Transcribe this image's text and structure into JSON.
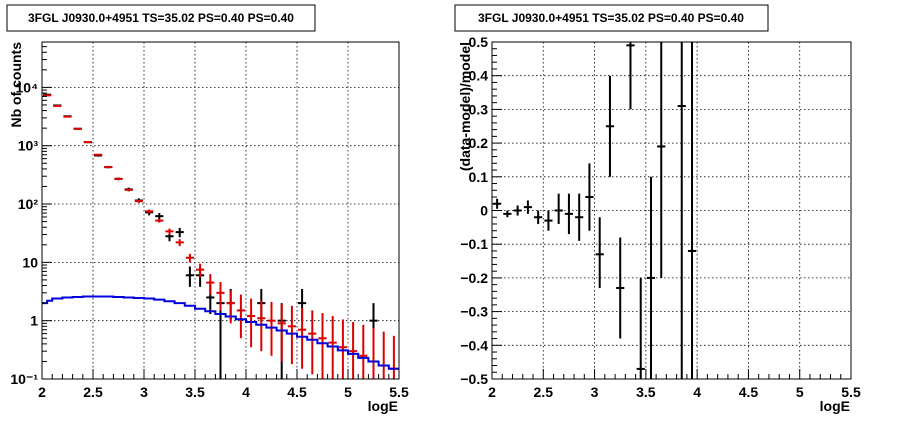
{
  "chart_data": [
    {
      "type": "histogram",
      "title": "3FGL J0930.0+4951 TS=35.02 PS=0.40 PS=0.40",
      "xlabel": "logE",
      "ylabel": "Nb of counts",
      "xlim": [
        2,
        5.5
      ],
      "ylim": [
        0.1,
        60000
      ],
      "yscale": "log",
      "grid": true,
      "x_ticks": [
        {
          "v": 2,
          "label": "2"
        },
        {
          "v": 2.5,
          "label": "2.5"
        },
        {
          "v": 3,
          "label": "3"
        },
        {
          "v": 3.5,
          "label": "3.5"
        },
        {
          "v": 4,
          "label": "4"
        },
        {
          "v": 4.5,
          "label": "4.5"
        },
        {
          "v": 5,
          "label": "5"
        },
        {
          "v": 5.5,
          "label": "5.5"
        }
      ],
      "y_ticks": [
        {
          "v": 0.1,
          "label": "10⁻¹"
        },
        {
          "v": 1,
          "label": "1"
        },
        {
          "v": 10,
          "label": "10"
        },
        {
          "v": 100,
          "label": "10²"
        },
        {
          "v": 1000,
          "label": "10³"
        },
        {
          "v": 10000,
          "label": "10⁴"
        }
      ],
      "series": [
        {
          "color": "#000000",
          "style": "errorbar",
          "points": [
            {
              "x": 2.05,
              "y": 7500,
              "lo": 7300,
              "hi": 7700
            },
            {
              "x": 2.15,
              "y": 4900,
              "lo": 4800,
              "hi": 5000
            },
            {
              "x": 2.25,
              "y": 3200,
              "lo": 3100,
              "hi": 3300
            },
            {
              "x": 2.35,
              "y": 1950,
              "lo": 1900,
              "hi": 2000
            },
            {
              "x": 2.45,
              "y": 1150,
              "lo": 1120,
              "hi": 1180
            },
            {
              "x": 2.55,
              "y": 680,
              "lo": 650,
              "hi": 710
            },
            {
              "x": 2.65,
              "y": 430,
              "lo": 410,
              "hi": 450
            },
            {
              "x": 2.75,
              "y": 270,
              "lo": 255,
              "hi": 285
            },
            {
              "x": 2.85,
              "y": 178,
              "lo": 165,
              "hi": 191
            },
            {
              "x": 2.95,
              "y": 115,
              "lo": 105,
              "hi": 125
            },
            {
              "x": 3.05,
              "y": 72,
              "lo": 64,
              "hi": 80
            },
            {
              "x": 3.15,
              "y": 62,
              "lo": 54,
              "hi": 70
            },
            {
              "x": 3.25,
              "y": 28,
              "lo": 23,
              "hi": 33
            },
            {
              "x": 3.35,
              "y": 33,
              "lo": 27,
              "hi": 39
            },
            {
              "x": 3.45,
              "y": 6,
              "lo": 3.8,
              "hi": 8.5
            },
            {
              "x": 3.55,
              "y": 6,
              "lo": 3.8,
              "hi": 8.5
            },
            {
              "x": 3.65,
              "y": 2.5,
              "lo": 1.3,
              "hi": 4.2
            },
            {
              "x": 3.75,
              "y": 2,
              "lo": 0.1,
              "hi": 3.3
            },
            {
              "x": 3.85,
              "y": 2,
              "lo": 1,
              "hi": 3.5
            },
            {
              "x": 4.15,
              "y": 2,
              "lo": 1,
              "hi": 3.5
            },
            {
              "x": 4.35,
              "y": 1,
              "lo": 0.1,
              "hi": 2
            },
            {
              "x": 4.55,
              "y": 2,
              "lo": 1,
              "hi": 3.5
            },
            {
              "x": 5.25,
              "y": 1,
              "lo": 0.1,
              "hi": 2
            }
          ]
        },
        {
          "color": "#dd0000",
          "style": "errorbar",
          "points": [
            {
              "x": 2.05,
              "y": 7300,
              "lo": 7100,
              "hi": 7500
            },
            {
              "x": 2.15,
              "y": 4800,
              "lo": 4700,
              "hi": 4900
            },
            {
              "x": 2.25,
              "y": 3150,
              "lo": 3050,
              "hi": 3250
            },
            {
              "x": 2.35,
              "y": 1950,
              "lo": 1900,
              "hi": 2000
            },
            {
              "x": 2.45,
              "y": 1150,
              "lo": 1120,
              "hi": 1180
            },
            {
              "x": 2.55,
              "y": 700,
              "lo": 680,
              "hi": 720
            },
            {
              "x": 2.65,
              "y": 430,
              "lo": 415,
              "hi": 445
            },
            {
              "x": 2.75,
              "y": 270,
              "lo": 260,
              "hi": 280
            },
            {
              "x": 2.85,
              "y": 175,
              "lo": 168,
              "hi": 182
            },
            {
              "x": 2.95,
              "y": 112,
              "lo": 106,
              "hi": 118
            },
            {
              "x": 3.05,
              "y": 75,
              "lo": 70,
              "hi": 80
            },
            {
              "x": 3.15,
              "y": 52,
              "lo": 48,
              "hi": 56
            },
            {
              "x": 3.25,
              "y": 34,
              "lo": 30,
              "hi": 38
            },
            {
              "x": 3.35,
              "y": 22,
              "lo": 19,
              "hi": 25
            },
            {
              "x": 3.45,
              "y": 12,
              "lo": 10,
              "hi": 14
            },
            {
              "x": 3.55,
              "y": 7.5,
              "lo": 5.5,
              "hi": 9.5
            },
            {
              "x": 3.65,
              "y": 4.5,
              "lo": 2.8,
              "hi": 6.3
            },
            {
              "x": 3.75,
              "y": 3,
              "lo": 1.5,
              "hi": 4.6
            },
            {
              "x": 3.85,
              "y": 2,
              "lo": 0.9,
              "hi": 3.3
            },
            {
              "x": 3.95,
              "y": 1.5,
              "lo": 0.5,
              "hi": 2.8
            },
            {
              "x": 4.05,
              "y": 1.2,
              "lo": 0.35,
              "hi": 2.4
            },
            {
              "x": 4.15,
              "y": 1.1,
              "lo": 0.3,
              "hi": 2.2
            },
            {
              "x": 4.25,
              "y": 1.0,
              "lo": 0.25,
              "hi": 2.1
            },
            {
              "x": 4.35,
              "y": 0.9,
              "lo": 0.2,
              "hi": 1.95
            },
            {
              "x": 4.45,
              "y": 0.8,
              "lo": 0.18,
              "hi": 1.8
            },
            {
              "x": 4.55,
              "y": 0.7,
              "lo": 0.15,
              "hi": 1.65
            },
            {
              "x": 4.65,
              "y": 0.6,
              "lo": 0.12,
              "hi": 1.5
            },
            {
              "x": 4.75,
              "y": 0.5,
              "lo": 0.1,
              "hi": 1.35
            },
            {
              "x": 4.85,
              "y": 0.42,
              "lo": 0.1,
              "hi": 1.2
            },
            {
              "x": 4.95,
              "y": 0.35,
              "lo": 0.1,
              "hi": 1.05
            },
            {
              "x": 5.05,
              "y": 0.3,
              "lo": 0.1,
              "hi": 0.95
            },
            {
              "x": 5.15,
              "y": 0.25,
              "lo": 0.1,
              "hi": 0.85
            },
            {
              "x": 5.25,
              "y": 0.2,
              "lo": 0.1,
              "hi": 0.75
            },
            {
              "x": 5.35,
              "y": 0.17,
              "lo": 0.1,
              "hi": 0.65
            },
            {
              "x": 5.45,
              "y": 0.15,
              "lo": 0.1,
              "hi": 0.55
            }
          ]
        },
        {
          "color": "#0000dd",
          "style": "step",
          "bin_edges": [
            2.0,
            2.05,
            2.1,
            2.2,
            2.3,
            2.4,
            2.5,
            2.6,
            2.7,
            2.8,
            2.9,
            3.0,
            3.1,
            3.2,
            3.3,
            3.4,
            3.5,
            3.6,
            3.7,
            3.8,
            3.9,
            4.0,
            4.1,
            4.2,
            4.3,
            4.4,
            4.5,
            4.6,
            4.7,
            4.8,
            4.9,
            5.0,
            5.1,
            5.2,
            5.3,
            5.4,
            5.5
          ],
          "values": [
            2.0,
            2.2,
            2.4,
            2.5,
            2.55,
            2.6,
            2.6,
            2.6,
            2.55,
            2.5,
            2.45,
            2.4,
            2.3,
            2.15,
            2.0,
            1.8,
            1.6,
            1.45,
            1.3,
            1.18,
            1.06,
            0.95,
            0.85,
            0.76,
            0.68,
            0.6,
            0.53,
            0.47,
            0.41,
            0.36,
            0.31,
            0.27,
            0.23,
            0.2,
            0.17,
            0.15
          ]
        }
      ]
    },
    {
      "type": "errorbar",
      "title": "3FGL J0930.0+4951 TS=35.02 PS=0.40 PS=0.40",
      "xlabel": "logE",
      "ylabel": "(data-model)/model",
      "xlim": [
        2,
        5.5
      ],
      "ylim": [
        -0.5,
        0.5
      ],
      "grid": true,
      "x_ticks": [
        {
          "v": 2,
          "label": "2"
        },
        {
          "v": 2.5,
          "label": "2.5"
        },
        {
          "v": 3,
          "label": "3"
        },
        {
          "v": 3.5,
          "label": "3.5"
        },
        {
          "v": 4,
          "label": "4"
        },
        {
          "v": 4.5,
          "label": "4.5"
        },
        {
          "v": 5,
          "label": "5"
        },
        {
          "v": 5.5,
          "label": "5.5"
        }
      ],
      "y_ticks": [
        {
          "v": -0.5,
          "label": "−0.5"
        },
        {
          "v": -0.4,
          "label": "−0.4"
        },
        {
          "v": -0.3,
          "label": "−0.3"
        },
        {
          "v": -0.2,
          "label": "−0.2"
        },
        {
          "v": -0.1,
          "label": "−0.1"
        },
        {
          "v": 0,
          "label": "0"
        },
        {
          "v": 0.1,
          "label": "0.1"
        },
        {
          "v": 0.2,
          "label": "0.2"
        },
        {
          "v": 0.3,
          "label": "0.3"
        },
        {
          "v": 0.4,
          "label": "0.4"
        },
        {
          "v": 0.5,
          "label": "0.5"
        }
      ],
      "series": [
        {
          "color": "#000000",
          "points": [
            {
              "x": 2.05,
              "y": 0.02,
              "lo": 0.005,
              "hi": 0.035
            },
            {
              "x": 2.15,
              "y": -0.01,
              "lo": -0.02,
              "hi": 0.0
            },
            {
              "x": 2.25,
              "y": 0.0,
              "lo": -0.015,
              "hi": 0.015
            },
            {
              "x": 2.35,
              "y": 0.01,
              "lo": -0.01,
              "hi": 0.03
            },
            {
              "x": 2.45,
              "y": -0.02,
              "lo": -0.04,
              "hi": 0.0
            },
            {
              "x": 2.55,
              "y": -0.03,
              "lo": -0.06,
              "hi": 0.0
            },
            {
              "x": 2.65,
              "y": 0.0,
              "lo": -0.04,
              "hi": 0.05
            },
            {
              "x": 2.75,
              "y": -0.01,
              "lo": -0.07,
              "hi": 0.05
            },
            {
              "x": 2.85,
              "y": -0.02,
              "lo": -0.09,
              "hi": 0.05
            },
            {
              "x": 2.95,
              "y": 0.04,
              "lo": -0.06,
              "hi": 0.14
            },
            {
              "x": 3.05,
              "y": -0.13,
              "lo": -0.23,
              "hi": -0.02
            },
            {
              "x": 3.15,
              "y": 0.25,
              "lo": 0.1,
              "hi": 0.4
            },
            {
              "x": 3.25,
              "y": -0.23,
              "lo": -0.38,
              "hi": -0.08
            },
            {
              "x": 3.35,
              "y": 0.49,
              "lo": 0.3,
              "hi": 0.5
            },
            {
              "x": 3.45,
              "y": -0.47,
              "lo": -0.5,
              "hi": -0.2
            },
            {
              "x": 3.55,
              "y": -0.2,
              "lo": -0.5,
              "hi": 0.1
            },
            {
              "x": 3.65,
              "y": 0.19,
              "lo": -0.2,
              "hi": 0.5
            },
            {
              "x": 3.85,
              "y": 0.31,
              "lo": -0.5,
              "hi": 0.5
            },
            {
              "x": 3.95,
              "y": -0.12,
              "lo": -0.5,
              "hi": 0.5
            }
          ]
        }
      ]
    }
  ]
}
